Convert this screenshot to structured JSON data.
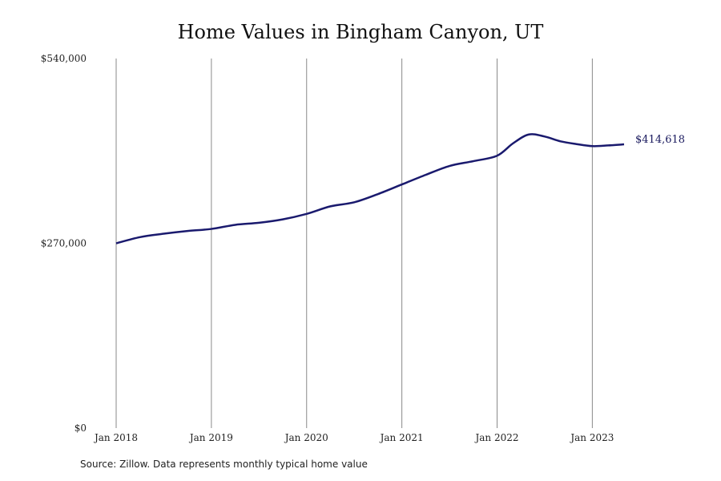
{
  "chart_data": {
    "type": "line",
    "title": "Home Values in Bingham Canyon, UT",
    "xlabel": "",
    "ylabel": "",
    "ylim": [
      0,
      540000
    ],
    "y_ticks": [
      {
        "value": 0,
        "label": "$0"
      },
      {
        "value": 270000,
        "label": "$270,000"
      },
      {
        "value": 540000,
        "label": "$540,000"
      }
    ],
    "x_range": [
      "2018-01",
      "2023-05"
    ],
    "x_ticks": [
      {
        "date": "2018-01",
        "label": "Jan 2018"
      },
      {
        "date": "2019-01",
        "label": "Jan 2019"
      },
      {
        "date": "2020-01",
        "label": "Jan 2020"
      },
      {
        "date": "2021-01",
        "label": "Jan 2021"
      },
      {
        "date": "2022-01",
        "label": "Jan 2022"
      },
      {
        "date": "2023-01",
        "label": "Jan 2023"
      }
    ],
    "vertical_grid": true,
    "series": [
      {
        "color": "#1a1a6e",
        "end_label": "$414,618",
        "points": [
          {
            "x": "2018-01",
            "y": 270000
          },
          {
            "x": "2018-04",
            "y": 279000
          },
          {
            "x": "2018-07",
            "y": 284000
          },
          {
            "x": "2018-10",
            "y": 288000
          },
          {
            "x": "2019-01",
            "y": 291000
          },
          {
            "x": "2019-04",
            "y": 297000
          },
          {
            "x": "2019-07",
            "y": 300000
          },
          {
            "x": "2019-10",
            "y": 305000
          },
          {
            "x": "2020-01",
            "y": 313000
          },
          {
            "x": "2020-04",
            "y": 324000
          },
          {
            "x": "2020-07",
            "y": 330000
          },
          {
            "x": "2020-10",
            "y": 342000
          },
          {
            "x": "2021-01",
            "y": 356000
          },
          {
            "x": "2021-04",
            "y": 370000
          },
          {
            "x": "2021-07",
            "y": 383000
          },
          {
            "x": "2021-10",
            "y": 390000
          },
          {
            "x": "2022-01",
            "y": 398000
          },
          {
            "x": "2022-03",
            "y": 416000
          },
          {
            "x": "2022-05",
            "y": 429000
          },
          {
            "x": "2022-07",
            "y": 426000
          },
          {
            "x": "2022-09",
            "y": 419000
          },
          {
            "x": "2022-11",
            "y": 415000
          },
          {
            "x": "2023-01",
            "y": 412000
          },
          {
            "x": "2023-03",
            "y": 413000
          },
          {
            "x": "2023-05",
            "y": 414618
          }
        ]
      }
    ]
  },
  "source_note": "Source: Zillow. Data represents monthly typical home value"
}
